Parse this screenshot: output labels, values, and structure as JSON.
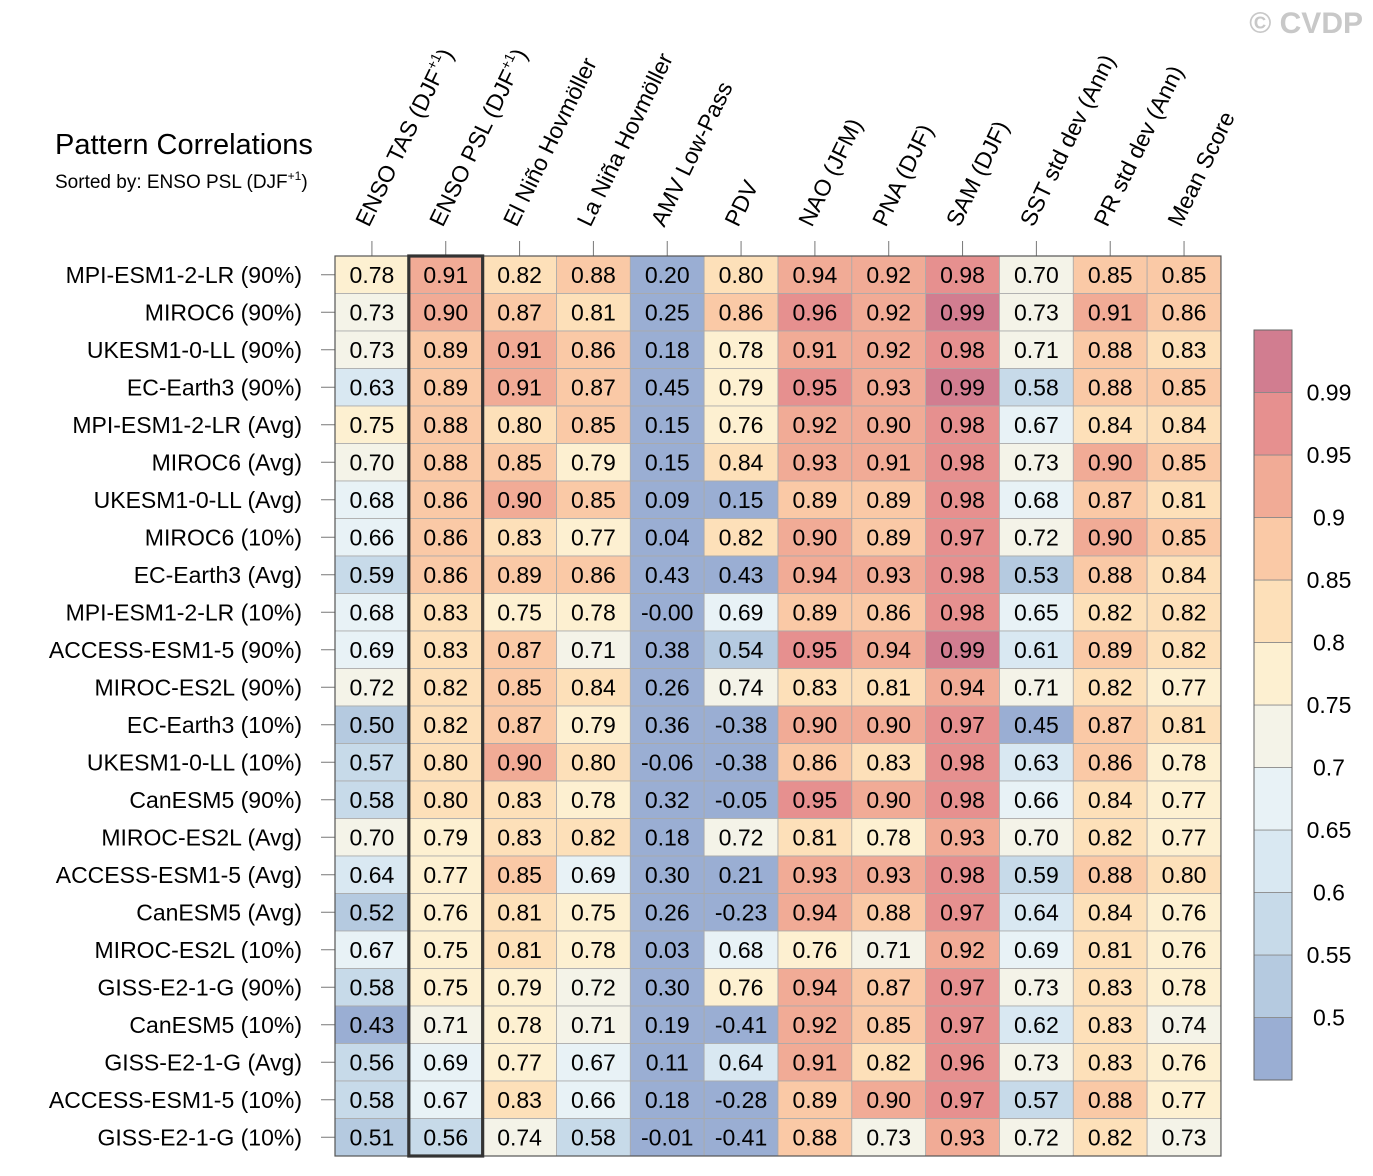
{
  "chart_data": {
    "type": "heatmap",
    "title": "Pattern Correlations",
    "subtitle_prefix": "Sorted by: ENSO PSL (DJF",
    "subtitle_sup": "+1",
    "subtitle_suffix": ")",
    "watermark": "© CVDP",
    "sorted_column_index": 1,
    "columns": [
      {
        "label": "ENSO TAS (DJF",
        "sup": "+1",
        "suffix": ")"
      },
      {
        "label": "ENSO PSL (DJF",
        "sup": "+1",
        "suffix": ")"
      },
      {
        "label": "El Niño Hovmöller"
      },
      {
        "label": "La Niña Hovmöller"
      },
      {
        "label": "AMV Low-Pass"
      },
      {
        "label": "PDV"
      },
      {
        "label": "NAO (JFM)"
      },
      {
        "label": "PNA (DJF)"
      },
      {
        "label": "SAM (DJF)"
      },
      {
        "label": "SST std dev (Ann)"
      },
      {
        "label": "PR std dev (Ann)"
      },
      {
        "label": "Mean Score"
      }
    ],
    "rows": [
      {
        "name": "MPI-ESM1-2-LR (90%)",
        "values": [
          "0.78",
          "0.91",
          "0.82",
          "0.88",
          "0.20",
          "0.80",
          "0.94",
          "0.92",
          "0.98",
          "0.70",
          "0.85",
          "0.85"
        ]
      },
      {
        "name": "MIROC6 (90%)",
        "values": [
          "0.73",
          "0.90",
          "0.87",
          "0.81",
          "0.25",
          "0.86",
          "0.96",
          "0.92",
          "0.99",
          "0.73",
          "0.91",
          "0.86"
        ]
      },
      {
        "name": "UKESM1-0-LL (90%)",
        "values": [
          "0.73",
          "0.89",
          "0.91",
          "0.86",
          "0.18",
          "0.78",
          "0.91",
          "0.92",
          "0.98",
          "0.71",
          "0.88",
          "0.83"
        ]
      },
      {
        "name": "EC-Earth3 (90%)",
        "values": [
          "0.63",
          "0.89",
          "0.91",
          "0.87",
          "0.45",
          "0.79",
          "0.95",
          "0.93",
          "0.99",
          "0.58",
          "0.88",
          "0.85"
        ]
      },
      {
        "name": "MPI-ESM1-2-LR (Avg)",
        "values": [
          "0.75",
          "0.88",
          "0.80",
          "0.85",
          "0.15",
          "0.76",
          "0.92",
          "0.90",
          "0.98",
          "0.67",
          "0.84",
          "0.84"
        ]
      },
      {
        "name": "MIROC6 (Avg)",
        "values": [
          "0.70",
          "0.88",
          "0.85",
          "0.79",
          "0.15",
          "0.84",
          "0.93",
          "0.91",
          "0.98",
          "0.73",
          "0.90",
          "0.85"
        ]
      },
      {
        "name": "UKESM1-0-LL (Avg)",
        "values": [
          "0.68",
          "0.86",
          "0.90",
          "0.85",
          "0.09",
          "0.15",
          "0.89",
          "0.89",
          "0.98",
          "0.68",
          "0.87",
          "0.81"
        ]
      },
      {
        "name": "MIROC6 (10%)",
        "values": [
          "0.66",
          "0.86",
          "0.83",
          "0.77",
          "0.04",
          "0.82",
          "0.90",
          "0.89",
          "0.97",
          "0.72",
          "0.90",
          "0.85"
        ]
      },
      {
        "name": "EC-Earth3 (Avg)",
        "values": [
          "0.59",
          "0.86",
          "0.89",
          "0.86",
          "0.43",
          "0.43",
          "0.94",
          "0.93",
          "0.98",
          "0.53",
          "0.88",
          "0.84"
        ]
      },
      {
        "name": "MPI-ESM1-2-LR (10%)",
        "values": [
          "0.68",
          "0.83",
          "0.75",
          "0.78",
          "-0.00",
          "0.69",
          "0.89",
          "0.86",
          "0.98",
          "0.65",
          "0.82",
          "0.82"
        ]
      },
      {
        "name": "ACCESS-ESM1-5 (90%)",
        "values": [
          "0.69",
          "0.83",
          "0.87",
          "0.71",
          "0.38",
          "0.54",
          "0.95",
          "0.94",
          "0.99",
          "0.61",
          "0.89",
          "0.82"
        ]
      },
      {
        "name": "MIROC-ES2L (90%)",
        "values": [
          "0.72",
          "0.82",
          "0.85",
          "0.84",
          "0.26",
          "0.74",
          "0.83",
          "0.81",
          "0.94",
          "0.71",
          "0.82",
          "0.77"
        ]
      },
      {
        "name": "EC-Earth3 (10%)",
        "values": [
          "0.50",
          "0.82",
          "0.87",
          "0.79",
          "0.36",
          "-0.38",
          "0.90",
          "0.90",
          "0.97",
          "0.45",
          "0.87",
          "0.81"
        ]
      },
      {
        "name": "UKESM1-0-LL (10%)",
        "values": [
          "0.57",
          "0.80",
          "0.90",
          "0.80",
          "-0.06",
          "-0.38",
          "0.86",
          "0.83",
          "0.98",
          "0.63",
          "0.86",
          "0.78"
        ]
      },
      {
        "name": "CanESM5 (90%)",
        "values": [
          "0.58",
          "0.80",
          "0.83",
          "0.78",
          "0.32",
          "-0.05",
          "0.95",
          "0.90",
          "0.98",
          "0.66",
          "0.84",
          "0.77"
        ]
      },
      {
        "name": "MIROC-ES2L (Avg)",
        "values": [
          "0.70",
          "0.79",
          "0.83",
          "0.82",
          "0.18",
          "0.72",
          "0.81",
          "0.78",
          "0.93",
          "0.70",
          "0.82",
          "0.77"
        ]
      },
      {
        "name": "ACCESS-ESM1-5 (Avg)",
        "values": [
          "0.64",
          "0.77",
          "0.85",
          "0.69",
          "0.30",
          "0.21",
          "0.93",
          "0.93",
          "0.98",
          "0.59",
          "0.88",
          "0.80"
        ]
      },
      {
        "name": "CanESM5 (Avg)",
        "values": [
          "0.52",
          "0.76",
          "0.81",
          "0.75",
          "0.26",
          "-0.23",
          "0.94",
          "0.88",
          "0.97",
          "0.64",
          "0.84",
          "0.76"
        ]
      },
      {
        "name": "MIROC-ES2L (10%)",
        "values": [
          "0.67",
          "0.75",
          "0.81",
          "0.78",
          "0.03",
          "0.68",
          "0.76",
          "0.71",
          "0.92",
          "0.69",
          "0.81",
          "0.76"
        ]
      },
      {
        "name": "GISS-E2-1-G (90%)",
        "values": [
          "0.58",
          "0.75",
          "0.79",
          "0.72",
          "0.30",
          "0.76",
          "0.94",
          "0.87",
          "0.97",
          "0.73",
          "0.83",
          "0.78"
        ]
      },
      {
        "name": "CanESM5 (10%)",
        "values": [
          "0.43",
          "0.71",
          "0.78",
          "0.71",
          "0.19",
          "-0.41",
          "0.92",
          "0.85",
          "0.97",
          "0.62",
          "0.83",
          "0.74"
        ]
      },
      {
        "name": "GISS-E2-1-G (Avg)",
        "values": [
          "0.56",
          "0.69",
          "0.77",
          "0.67",
          "0.11",
          "0.64",
          "0.91",
          "0.82",
          "0.96",
          "0.73",
          "0.83",
          "0.76"
        ]
      },
      {
        "name": "ACCESS-ESM1-5 (10%)",
        "values": [
          "0.58",
          "0.67",
          "0.83",
          "0.66",
          "0.18",
          "-0.28",
          "0.89",
          "0.90",
          "0.97",
          "0.57",
          "0.88",
          "0.77"
        ]
      },
      {
        "name": "GISS-E2-1-G (10%)",
        "values": [
          "0.51",
          "0.56",
          "0.74",
          "0.58",
          "-0.01",
          "-0.41",
          "0.88",
          "0.73",
          "0.93",
          "0.72",
          "0.82",
          "0.73"
        ]
      }
    ],
    "colorbar": {
      "labels": [
        "0.99",
        "0.95",
        "0.9",
        "0.85",
        "0.8",
        "0.75",
        "0.7",
        "0.65",
        "0.6",
        "0.55",
        "0.5"
      ],
      "thresholds": [
        0.5,
        0.55,
        0.6,
        0.65,
        0.7,
        0.75,
        0.8,
        0.85,
        0.9,
        0.95,
        0.99
      ],
      "colors": [
        "#9aaed3",
        "#b5cae0",
        "#c7dae9",
        "#d9e8f2",
        "#e8f2f6",
        "#f4f3e8",
        "#fdf0d1",
        "#fde0b9",
        "#fac9a6",
        "#f1ab96",
        "#e6908f",
        "#d17d90"
      ]
    }
  }
}
